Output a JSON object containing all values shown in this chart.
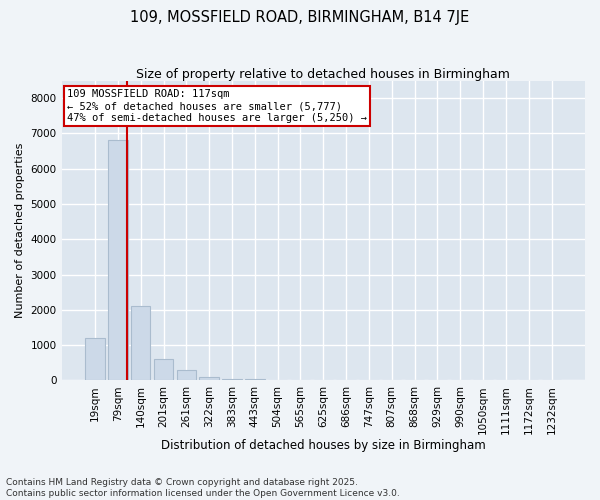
{
  "title": "109, MOSSFIELD ROAD, BIRMINGHAM, B14 7JE",
  "subtitle": "Size of property relative to detached houses in Birmingham",
  "xlabel": "Distribution of detached houses by size in Birmingham",
  "ylabel": "Number of detached properties",
  "categories": [
    "19sqm",
    "79sqm",
    "140sqm",
    "201sqm",
    "261sqm",
    "322sqm",
    "383sqm",
    "443sqm",
    "504sqm",
    "565sqm",
    "625sqm",
    "686sqm",
    "747sqm",
    "807sqm",
    "868sqm",
    "929sqm",
    "990sqm",
    "1050sqm",
    "1111sqm",
    "1172sqm",
    "1232sqm"
  ],
  "values": [
    1200,
    6800,
    2100,
    600,
    280,
    105,
    50,
    28,
    15,
    6,
    0,
    0,
    0,
    0,
    0,
    0,
    0,
    0,
    0,
    0,
    0
  ],
  "bar_color": "#ccd9e8",
  "bar_edge_color": "#aabcce",
  "vline_color": "#cc0000",
  "vline_x_index": 1.42,
  "annotation_text": "109 MOSSFIELD ROAD: 117sqm\n← 52% of detached houses are smaller (5,777)\n47% of semi-detached houses are larger (5,250) →",
  "annotation_box_facecolor": "#ffffff",
  "annotation_box_edgecolor": "#cc0000",
  "ylim": [
    0,
    8500
  ],
  "yticks": [
    0,
    1000,
    2000,
    3000,
    4000,
    5000,
    6000,
    7000,
    8000
  ],
  "title_fontsize": 10.5,
  "subtitle_fontsize": 9,
  "ylabel_fontsize": 8,
  "xlabel_fontsize": 8.5,
  "tick_fontsize": 7.5,
  "annotation_fontsize": 7.5,
  "footer_fontsize": 6.5,
  "footer_line1": "Contains HM Land Registry data © Crown copyright and database right 2025.",
  "footer_line2": "Contains public sector information licensed under the Open Government Licence v3.0.",
  "fig_facecolor": "#f0f4f8",
  "axes_facecolor": "#dde6ef",
  "grid_color": "#ffffff",
  "grid_linewidth": 1.0
}
